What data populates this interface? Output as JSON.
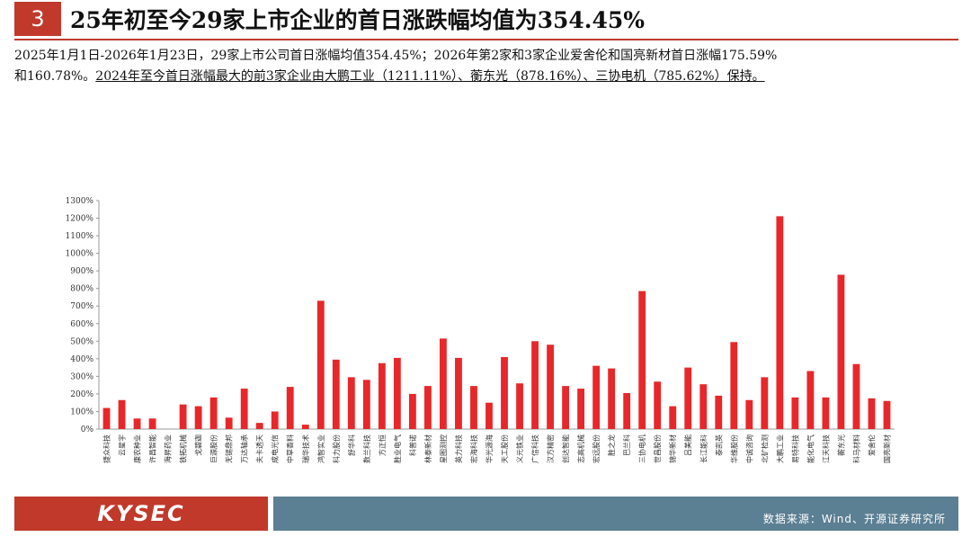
{
  "title": {
    "number": "3",
    "text": "25年初至今29家上市企业的首日涨跌幅均值为354.45%"
  },
  "summary": {
    "line1": "2025年1月1日-2026年1月23日，29家上市公司首日涨幅均值354.45%；2026年第2家和3家企业爱舍伦和国亮新材首日涨幅175.59%",
    "line2_prefix": "和160.78%。",
    "line2_underlined": "2024年至今首日涨幅最大的前3家企业由大鹏工业（1211.11%）、蘅东光（878.16%）、三协电机（785.62%）保持。"
  },
  "footer": {
    "logo": "KYSEC",
    "source": "数据来源：Wind、开源证券研究所"
  },
  "colors": {
    "bar": "#e8272a",
    "accent": "#c0392b",
    "footer_bar": "#5b7f93"
  },
  "chart_data": {
    "type": "bar",
    "ylim": [
      0,
      1300
    ],
    "yticks": [
      0,
      100,
      200,
      300,
      400,
      500,
      600,
      700,
      800,
      900,
      1000,
      1100,
      1200,
      1300
    ],
    "ytick_labels": [
      "0%",
      "100%",
      "200%",
      "300%",
      "400%",
      "500%",
      "600%",
      "700%",
      "800%",
      "900%",
      "1000%",
      "1100%",
      "1200%",
      "1300%"
    ],
    "categories": [
      "捷众科技",
      "云星宇",
      "康农种业",
      "许昌智能",
      "海昇药业",
      "铁拓机械",
      "戈碧迦",
      "巨源股份",
      "无锡鼎邦",
      "万达轴承",
      "夫卡透天",
      "成电光信",
      "中草香料",
      "瑞华技术",
      "鸿智实业",
      "科力股份",
      "舒华科",
      "数兰科技",
      "方正恒",
      "胜业电气",
      "科普诺",
      "林泰新材",
      "星图测控",
      "英力科技",
      "宏海科技",
      "华光源海",
      "天工股份",
      "义元铁业",
      "广信科技",
      "汉方精密",
      "创达智能",
      "志高机械",
      "宏远股份",
      "胜之龙",
      "巴兰科",
      "三协电机",
      "世昌股份",
      "锦华新材",
      "吕美能",
      "长江能科",
      "泰凯英",
      "华维股份",
      "中诚咨询",
      "北矿检测",
      "大鹏工业",
      "易特科技",
      "能化电气",
      "江天科技",
      "蘅东光",
      "科马材料",
      "爱舍伦",
      "国亮新材"
    ],
    "values": [
      120,
      165,
      60,
      60,
      0,
      140,
      130,
      180,
      65,
      230,
      35,
      100,
      240,
      25,
      730,
      395,
      295,
      280,
      375,
      405,
      200,
      245,
      515,
      405,
      245,
      150,
      410,
      260,
      500,
      480,
      245,
      230,
      360,
      345,
      205,
      785,
      270,
      130,
      350,
      255,
      190,
      495,
      165,
      295,
      1211,
      180,
      330,
      180,
      878,
      370,
      175,
      160
    ]
  }
}
